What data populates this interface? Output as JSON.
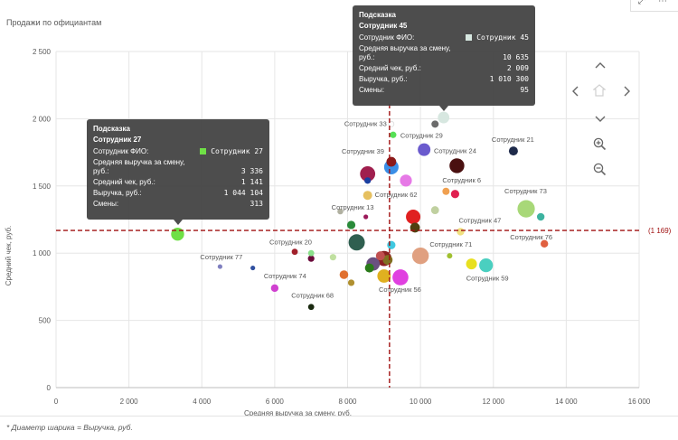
{
  "title": "Продажи по официантам",
  "footnote": "* Диаметр шарика = Выручка, руб.",
  "colors": {
    "refline": "#a01010",
    "grid": "#e6e6e6",
    "tooltip_bg": "#404040"
  },
  "nav_icons": [
    "chevron-up-icon",
    "chevron-left-icon",
    "home-icon",
    "chevron-right-icon",
    "chevron-down-icon",
    "zoom-in-icon",
    "zoom-out-icon"
  ],
  "tooltip_left": {
    "header": "Подсказка",
    "subheader": "Сотрудник 27",
    "swatch_color": "#6fe046",
    "rows": [
      {
        "k": "Сотрудник ФИО:",
        "v": "Сотрудник 27"
      },
      {
        "k": "Средняя выручка за смену, руб.:",
        "v": "3 336"
      },
      {
        "k": "Средний чек, руб.:",
        "v": "1 141"
      },
      {
        "k": "Выручка, руб.:",
        "v": "1 044 104"
      },
      {
        "k": "Смены:",
        "v": "313"
      }
    ]
  },
  "tooltip_top": {
    "header": "Подсказка",
    "subheader": "Сотрудник 45",
    "swatch_color": "#d7e7e0",
    "rows": [
      {
        "k": "Сотрудник ФИО:",
        "v": "Сотрудник 45"
      },
      {
        "k": "Средняя выручка за смену, руб.:",
        "v": "10 635"
      },
      {
        "k": "Средний чек, руб.:",
        "v": "2 009"
      },
      {
        "k": "Выручка, руб.:",
        "v": "1 010 300"
      },
      {
        "k": "Смены:",
        "v": "95"
      }
    ]
  },
  "chart_data": {
    "type": "scatter",
    "title": "Продажи по официантам",
    "xlabel": "Средняя выручка за смену, руб.",
    "ylabel": "Средний чек, руб.",
    "xlim": [
      0,
      16000
    ],
    "ylim": [
      0,
      2500
    ],
    "xticks": [
      0,
      2000,
      4000,
      6000,
      8000,
      10000,
      12000,
      14000,
      16000
    ],
    "xtick_labels": [
      "0",
      "2 000",
      "4 000",
      "6 000",
      "8 000",
      "10 000",
      "12 000",
      "14 000",
      "16 000"
    ],
    "yticks": [
      0,
      500,
      1000,
      1500,
      2000,
      2500
    ],
    "ytick_labels": [
      "0",
      "500",
      "1 000",
      "1 500",
      "2 000",
      "2 500"
    ],
    "grid": true,
    "size_measure": "Выручка, руб.",
    "ref_x": 9150,
    "ref_y": 1169,
    "ref_y_label": "(1 169)",
    "points": [
      {
        "label": "Сотрудник 45",
        "x": 10635,
        "y": 2009,
        "r": 6.4,
        "color": "#d7e7e0",
        "show_label": false
      },
      {
        "label": "",
        "x": 10400,
        "y": 1960,
        "r": 4,
        "color": "#6b6b6b",
        "show_label": false
      },
      {
        "label": "Сотрудник 33",
        "x": 9200,
        "y": 1960,
        "r": 3,
        "color": "#ffffff",
        "show_label": true
      },
      {
        "label": "Сотрудник 29",
        "x": 9250,
        "y": 1880,
        "r": 3.6,
        "color": "#55e055",
        "show_label": true
      },
      {
        "label": "",
        "x": 10100,
        "y": 1770,
        "r": 7,
        "color": "#6a5acd",
        "show_label": false
      },
      {
        "label": "Сотрудник 39",
        "x": 9200,
        "y": 1680,
        "r": 5.4,
        "color": "#8b1a1a",
        "show_label": true
      },
      {
        "label": "",
        "x": 9200,
        "y": 1640,
        "r": 8,
        "color": "#3a8ee6",
        "show_label": false
      },
      {
        "label": "Сотрудник 24",
        "x": 11000,
        "y": 1650,
        "r": 8.2,
        "color": "#4a1010",
        "show_label": true
      },
      {
        "label": "Сотрудник 21",
        "x": 12550,
        "y": 1760,
        "r": 5,
        "color": "#1e2a4a",
        "show_label": true
      },
      {
        "label": "",
        "x": 8550,
        "y": 1590,
        "r": 8.4,
        "color": "#a01f4e",
        "show_label": false
      },
      {
        "label": "",
        "x": 8550,
        "y": 1540,
        "r": 3.6,
        "color": "#1a3fa0",
        "show_label": false
      },
      {
        "label": "",
        "x": 9600,
        "y": 1540,
        "r": 6.6,
        "color": "#e679e6",
        "show_label": false
      },
      {
        "label": "Сотрудник 6",
        "x": 10700,
        "y": 1460,
        "r": 4,
        "color": "#f0a050",
        "show_label": true
      },
      {
        "label": "",
        "x": 10950,
        "y": 1440,
        "r": 4.6,
        "color": "#e02050",
        "show_label": false
      },
      {
        "label": "Сотрудник 62",
        "x": 8550,
        "y": 1430,
        "r": 5,
        "color": "#e6c060",
        "show_label": true
      },
      {
        "label": "Сотрудник 73",
        "x": 12900,
        "y": 1330,
        "r": 9.6,
        "color": "#a8d878",
        "show_label": true
      },
      {
        "label": "",
        "x": 13300,
        "y": 1270,
        "r": 4.2,
        "color": "#3db3a0",
        "show_label": false
      },
      {
        "label": "Сотрудник 13",
        "x": 8500,
        "y": 1270,
        "r": 2.6,
        "color": "#9b1a5a",
        "show_label": true
      },
      {
        "label": "",
        "x": 7800,
        "y": 1310,
        "r": 3.2,
        "color": "#b0b0a0",
        "show_label": false
      },
      {
        "label": "",
        "x": 10400,
        "y": 1320,
        "r": 4.4,
        "color": "#c0d0a0",
        "show_label": false
      },
      {
        "label": "",
        "x": 9800,
        "y": 1270,
        "r": 8,
        "color": "#e02020",
        "show_label": false
      },
      {
        "label": "Сотрудник 47",
        "x": 11100,
        "y": 1160,
        "r": 4.2,
        "color": "#f0e080",
        "show_label": true
      },
      {
        "label": "",
        "x": 9850,
        "y": 1190,
        "r": 5.4,
        "color": "#504010",
        "show_label": false
      },
      {
        "label": "",
        "x": 8100,
        "y": 1210,
        "r": 4.6,
        "color": "#2a8a3a",
        "show_label": false
      },
      {
        "label": "Сотрудник 76",
        "x": 13400,
        "y": 1070,
        "r": 4.2,
        "color": "#e06040",
        "show_label": true
      },
      {
        "label": "Сотрудник 27",
        "x": 3336,
        "y": 1141,
        "r": 7.2,
        "color": "#6fe046",
        "show_label": false
      },
      {
        "label": "Сотрудник 20",
        "x": 6550,
        "y": 1010,
        "r": 3.4,
        "color": "#a0202a",
        "show_label": true
      },
      {
        "label": "",
        "x": 8250,
        "y": 1080,
        "r": 9,
        "color": "#2f5f50",
        "show_label": false
      },
      {
        "label": "",
        "x": 9200,
        "y": 1060,
        "r": 4.6,
        "color": "#40c8e0",
        "show_label": false
      },
      {
        "label": "Сотрудник 71",
        "x": 10800,
        "y": 980,
        "r": 3,
        "color": "#a0c030",
        "show_label": true
      },
      {
        "label": "",
        "x": 10000,
        "y": 980,
        "r": 9.2,
        "color": "#e0a080",
        "show_label": false
      },
      {
        "label": "",
        "x": 7000,
        "y": 1000,
        "r": 3.4,
        "color": "#8be08b",
        "show_label": false
      },
      {
        "label": "",
        "x": 7000,
        "y": 960,
        "r": 3.6,
        "color": "#6a0a3a",
        "show_label": false
      },
      {
        "label": "",
        "x": 7600,
        "y": 970,
        "r": 3.6,
        "color": "#c0e0a0",
        "show_label": false
      },
      {
        "label": "",
        "x": 9000,
        "y": 960,
        "r": 8.4,
        "color": "#8b2020",
        "show_label": false
      },
      {
        "label": "",
        "x": 8900,
        "y": 980,
        "r": 5,
        "color": "#c05050",
        "show_label": false
      },
      {
        "label": "",
        "x": 8700,
        "y": 920,
        "r": 7.4,
        "color": "#6a5080",
        "show_label": false
      },
      {
        "label": "",
        "x": 9100,
        "y": 950,
        "r": 5.4,
        "color": "#807020",
        "show_label": false
      },
      {
        "label": "",
        "x": 8600,
        "y": 890,
        "r": 5,
        "color": "#2a7a1a",
        "show_label": false
      },
      {
        "label": "",
        "x": 11400,
        "y": 920,
        "r": 6,
        "color": "#e8e020",
        "show_label": false
      },
      {
        "label": "Сотрудник 59",
        "x": 11800,
        "y": 910,
        "r": 7.6,
        "color": "#4acfc0",
        "show_label": true
      },
      {
        "label": "Сотрудник 77",
        "x": 4500,
        "y": 900,
        "r": 2.6,
        "color": "#8080c0",
        "show_label": true
      },
      {
        "label": "",
        "x": 5400,
        "y": 890,
        "r": 2.6,
        "color": "#3050a0",
        "show_label": false
      },
      {
        "label": "Сотрудник 74",
        "x": 6000,
        "y": 740,
        "r": 4.2,
        "color": "#d040d0",
        "show_label": true
      },
      {
        "label": "",
        "x": 7900,
        "y": 840,
        "r": 4.8,
        "color": "#e07030",
        "show_label": false
      },
      {
        "label": "",
        "x": 8100,
        "y": 780,
        "r": 3.6,
        "color": "#b09030",
        "show_label": false
      },
      {
        "label": "",
        "x": 9000,
        "y": 830,
        "r": 7.4,
        "color": "#e0b020",
        "show_label": false
      },
      {
        "label": "Сотрудник 56",
        "x": 9450,
        "y": 820,
        "r": 8.8,
        "color": "#e040e0",
        "show_label": true
      },
      {
        "label": "Сотрудник 68",
        "x": 7000,
        "y": 600,
        "r": 3.4,
        "color": "#1a2a10",
        "show_label": true
      }
    ]
  }
}
